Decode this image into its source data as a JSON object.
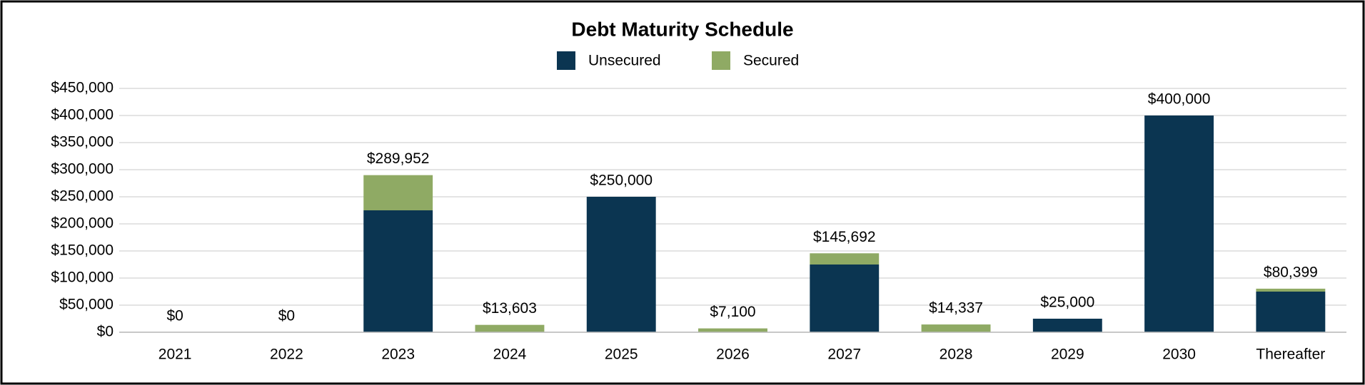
{
  "chart_data": {
    "type": "stacked_bar",
    "title": "Debt Maturity Schedule",
    "categories": [
      "2021",
      "2022",
      "2023",
      "2024",
      "2025",
      "2026",
      "2027",
      "2028",
      "2029",
      "2030",
      "Thereafter"
    ],
    "series": [
      {
        "name": "Unsecured",
        "color": "#0b3551",
        "values": [
          0,
          0,
          225000,
          0,
          250000,
          0,
          125000,
          0,
          25000,
          400000,
          75000
        ]
      },
      {
        "name": "Secured",
        "color": "#8faa64",
        "values": [
          0,
          0,
          64952,
          13603,
          0,
          7100,
          20692,
          14337,
          0,
          0,
          5399
        ]
      }
    ],
    "totals": [
      0,
      0,
      289952,
      13603,
      250000,
      7100,
      145692,
      14337,
      25000,
      400000,
      80399
    ],
    "total_labels": [
      "$0",
      "$0",
      "$289,952",
      "$13,603",
      "$250,000",
      "$7,100",
      "$145,692",
      "$14,337",
      "$25,000",
      "$400,000",
      "$80,399"
    ],
    "ylim": [
      0,
      450000
    ],
    "yticks": [
      {
        "value": 0,
        "label": "$0"
      },
      {
        "value": 50000,
        "label": "$50,000"
      },
      {
        "value": 100000,
        "label": "$100,000"
      },
      {
        "value": 150000,
        "label": "$150,000"
      },
      {
        "value": 200000,
        "label": "$200,000"
      },
      {
        "value": 250000,
        "label": "$250,000"
      },
      {
        "value": 300000,
        "label": "$300,000"
      },
      {
        "value": 350000,
        "label": "$350,000"
      },
      {
        "value": 400000,
        "label": "$400,000"
      },
      {
        "value": 450000,
        "label": "$450,000"
      }
    ],
    "grid": true,
    "legend": "top"
  }
}
